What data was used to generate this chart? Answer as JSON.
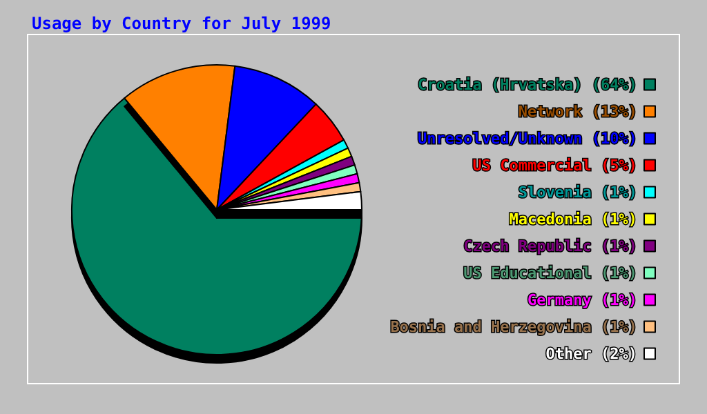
{
  "chart_data": {
    "type": "pie",
    "title": "Usage by Country for July 1999",
    "categories": [
      "Croatia (Hrvatska) (64%)",
      "Network (13%)",
      "Unresolved/Unknown (10%)",
      "US Commercial (5%)",
      "Slovenia (1%)",
      "Macedonia (1%)",
      "Czech Republic (1%)",
      "US Educational (1%)",
      "Germany (1%)",
      "Bosnia and Herzegovina (1%)",
      "Other (2%)"
    ],
    "values": [
      64,
      13,
      10,
      5,
      1,
      1,
      1,
      1,
      1,
      1,
      2
    ],
    "colors": [
      "#008060",
      "#ff8000",
      "#0000ff",
      "#ff0000",
      "#00ffff",
      "#ffff00",
      "#800080",
      "#80ffc0",
      "#ff00ff",
      "#ffc080",
      "#ffffff"
    ],
    "legend": "right"
  }
}
